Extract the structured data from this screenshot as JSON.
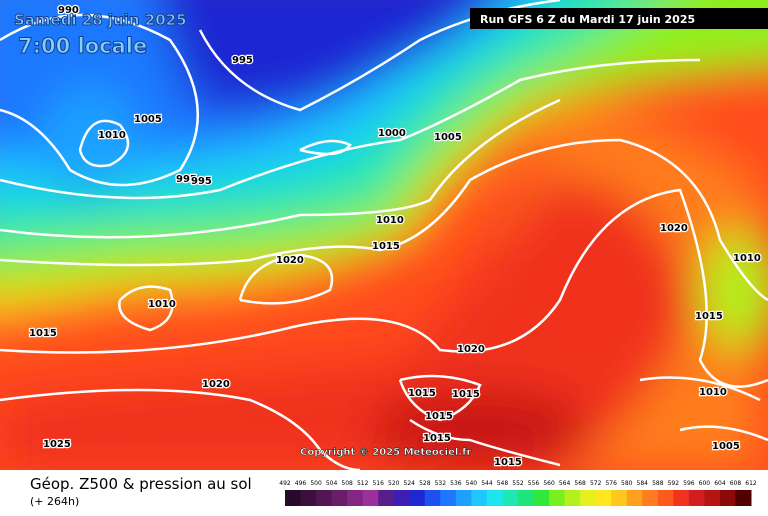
{
  "header": {
    "date": "Samedi 28 juin 2025",
    "time": "7:00 locale",
    "run": "Run GFS 6 Z du Mardi 17 juin 2025"
  },
  "copyright": "Copyright © 2025 Meteociel.fr",
  "footer": {
    "title": "Géop. Z500 & pression au sol",
    "lead": "(+ 264h)"
  },
  "legend": {
    "ticks": [
      492,
      496,
      500,
      504,
      508,
      512,
      516,
      520,
      524,
      528,
      532,
      536,
      540,
      544,
      548,
      552,
      556,
      560,
      564,
      568,
      572,
      576,
      580,
      584,
      588,
      592,
      596,
      600,
      604,
      608,
      612
    ],
    "colors": [
      "#2a0a2a",
      "#3c0f3c",
      "#521652",
      "#6a1e6a",
      "#822882",
      "#9b329b",
      "#5a1e8c",
      "#3c1eb4",
      "#1e28d2",
      "#1e50f0",
      "#1e78ff",
      "#1ea0ff",
      "#1ec8ff",
      "#1ee6f0",
      "#1ee6b4",
      "#1ee678",
      "#32e63c",
      "#78f01e",
      "#b4f01e",
      "#e6f01e",
      "#ffe61e",
      "#ffc81e",
      "#ffa01e",
      "#ff7d1e",
      "#ff5a1e",
      "#f0321e",
      "#d21e1e",
      "#b41414",
      "#8c0a0a",
      "#500000"
    ]
  },
  "isobar_labels": [
    "990",
    "995",
    "1005",
    "1010",
    "1000",
    "1005",
    "995",
    "995",
    "1010",
    "1015",
    "1020",
    "1010",
    "1015",
    "1020",
    "1010",
    "1015",
    "1020",
    "1020",
    "1015",
    "1015",
    "1015",
    "1015",
    "1010",
    "1005",
    "1025",
    "1015"
  ]
}
